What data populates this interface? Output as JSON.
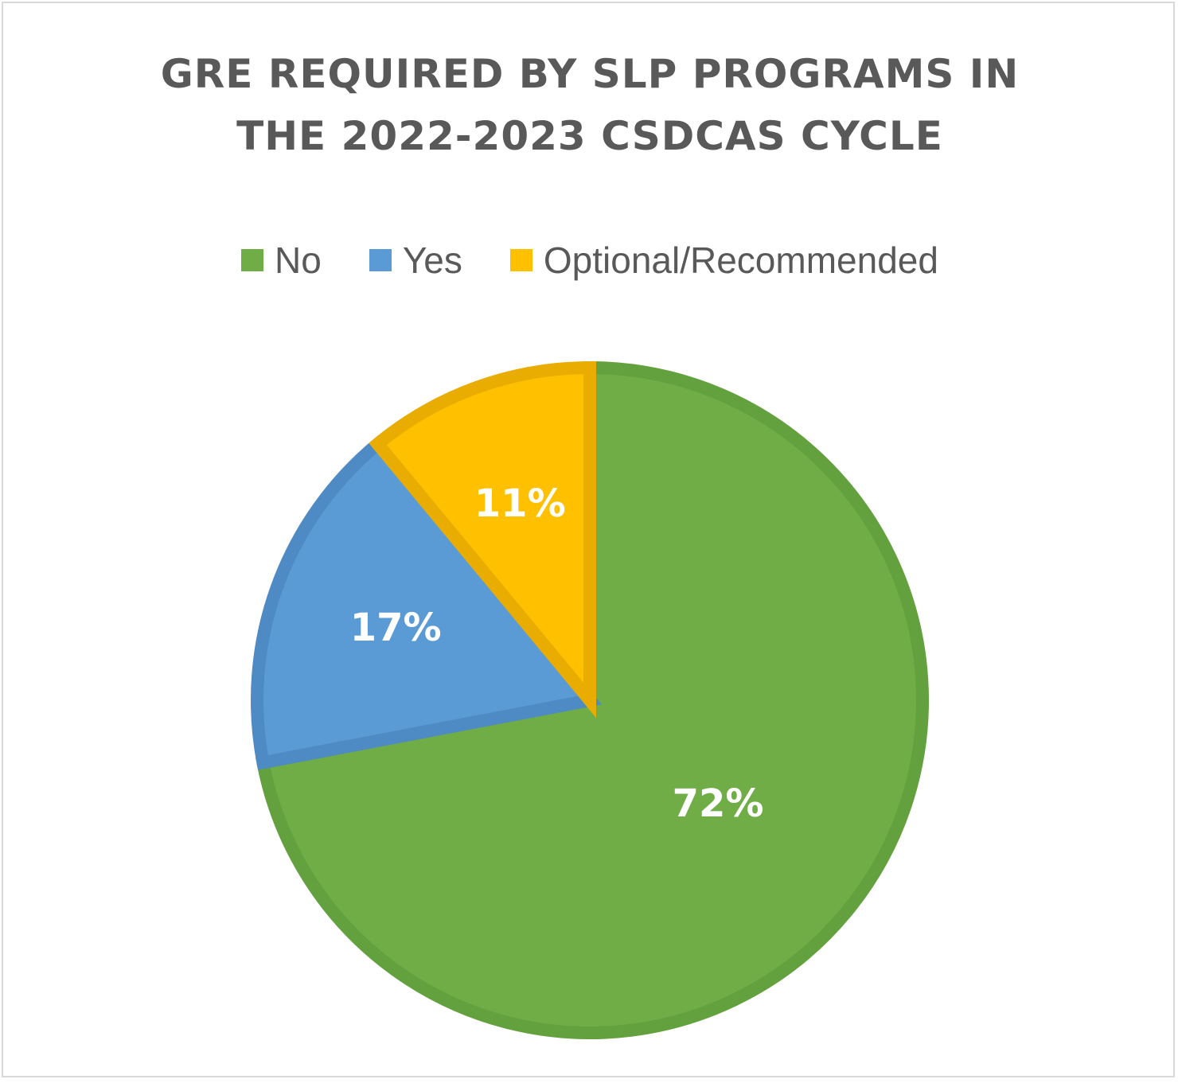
{
  "chart_data": {
    "type": "pie",
    "title_lines": [
      "GRE REQUIRED BY SLP PROGRAMS IN",
      "THE 2022-2023 CSDCAS CYCLE"
    ],
    "categories": [
      "No",
      "Yes",
      "Optional/Recommended"
    ],
    "values": [
      72,
      17,
      11
    ],
    "data_labels": [
      "72%",
      "17%",
      "11%"
    ],
    "colors": [
      "#70ad47",
      "#5b9bd5",
      "#ffc000"
    ],
    "border_colors": [
      "#63a03e",
      "#4e8ac4",
      "#e8ad00"
    ],
    "legend_position": "top",
    "start_angle": "12 o'clock, clockwise"
  }
}
